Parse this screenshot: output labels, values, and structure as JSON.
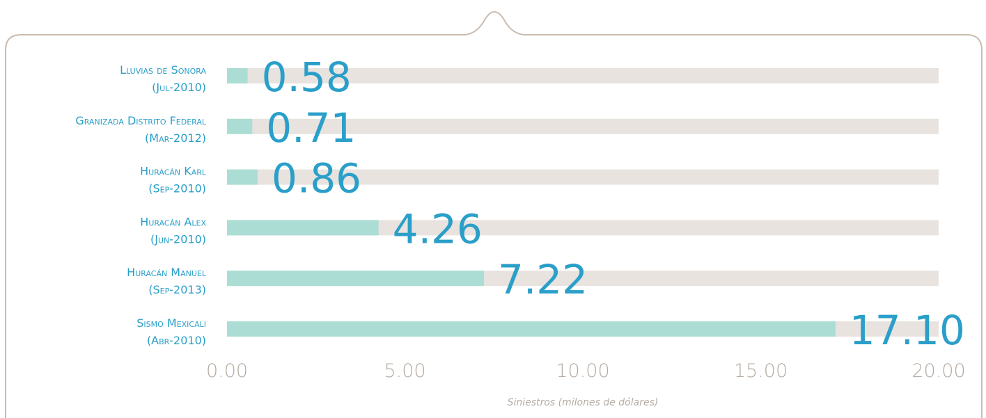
{
  "chart_data": {
    "type": "bar",
    "orientation": "horizontal",
    "categories": [
      [
        "Lluvias de Sonora",
        "(Jul-2010)"
      ],
      [
        "Granizada Distrito Federal",
        "(Mar-2012)"
      ],
      [
        "Huracán Karl",
        "(Sep-2010)"
      ],
      [
        "Huracán Alex",
        "(Jun-2010)"
      ],
      [
        "Huracán Manuel",
        "(Sep-2013)"
      ],
      [
        "Sismo Mexicali",
        "(Abr-2010)"
      ]
    ],
    "values": [
      0.58,
      0.71,
      0.86,
      4.26,
      7.22,
      17.1
    ],
    "value_labels": [
      "0.58",
      "0.71",
      "0.86",
      "4.26",
      "7.22",
      "17.10"
    ],
    "color": "#abddd4",
    "track_color": "#e8e3de",
    "xlim": [
      0,
      20
    ],
    "xticks": [
      {
        "value": 0,
        "label": "0.00"
      },
      {
        "value": 5,
        "label": "5.00"
      },
      {
        "value": 10,
        "label": "10.00"
      },
      {
        "value": 15,
        "label": "15.00"
      },
      {
        "value": 20,
        "label": "20.00"
      }
    ],
    "x_label": "Siniestros (milones de dólares)"
  }
}
